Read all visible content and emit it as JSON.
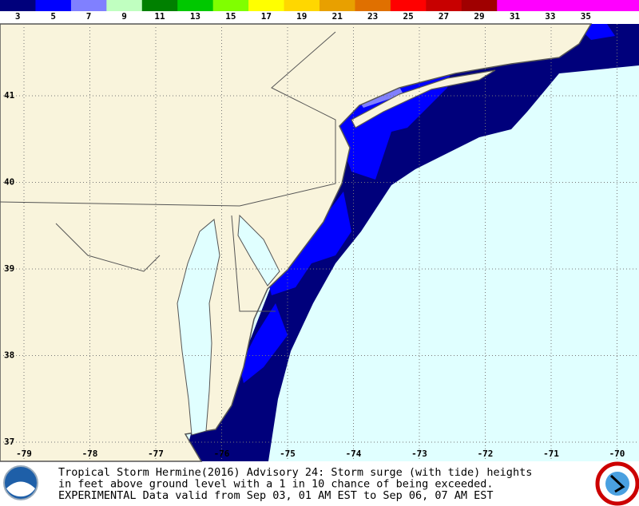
{
  "legend": {
    "labels": [
      "3",
      "5",
      "7",
      "9",
      "11",
      "13",
      "15",
      "17",
      "19",
      "21",
      "23",
      "25",
      "27",
      "29",
      "31",
      "33",
      "35"
    ]
  },
  "map": {
    "lat_labels": [
      "41",
      "40",
      "39",
      "38",
      "37"
    ],
    "lon_labels": [
      "-79",
      "-78",
      "-77",
      "-76",
      "-75",
      "-74",
      "-73",
      "-72",
      "-71",
      "-70"
    ]
  },
  "caption": {
    "lines": [
      "Tropical Storm Hermine(2016) Advisory 24: Storm surge (with tide) heights",
      "in feet above ground level with a 1 in 10 chance of being exceeded.",
      "EXPERIMENTAL Data valid from Sep 03, 01 AM EST to Sep 06, 07 AM EST"
    ]
  }
}
